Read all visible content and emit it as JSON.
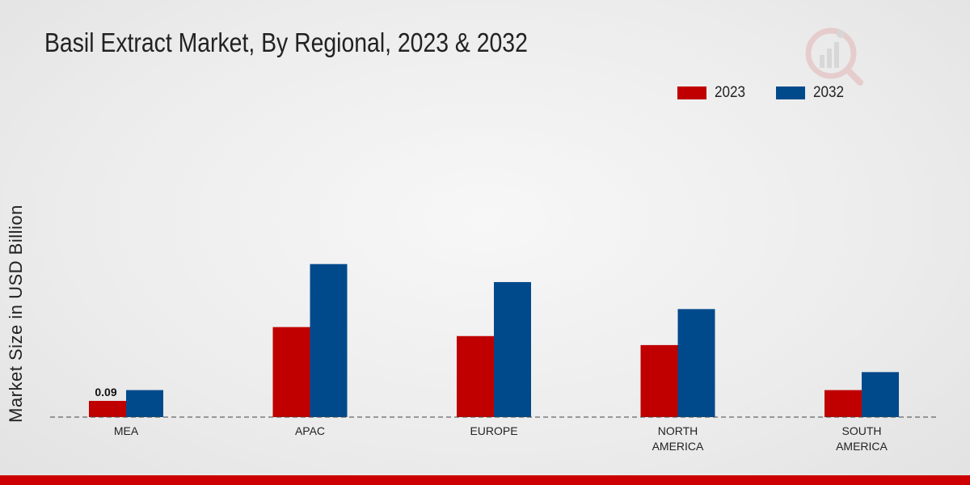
{
  "chart_data": {
    "type": "bar",
    "title": "Basil Extract Market, By Regional, 2023 & 2032",
    "ylabel": "Market Size in USD Billion",
    "xlabel": "",
    "categories": [
      "MEA",
      "APAC",
      "EUROPE",
      "NORTH AMERICA",
      "SOUTH AMERICA"
    ],
    "category_lines": [
      [
        "MEA"
      ],
      [
        "APAC"
      ],
      [
        "EUROPE"
      ],
      [
        "NORTH",
        "AMERICA"
      ],
      [
        "SOUTH",
        "AMERICA"
      ]
    ],
    "series": [
      {
        "name": "2023",
        "color": "#c00000",
        "values": [
          0.09,
          0.5,
          0.45,
          0.4,
          0.15
        ]
      },
      {
        "name": "2032",
        "color": "#004a8c",
        "values": [
          0.15,
          0.85,
          0.75,
          0.6,
          0.25
        ]
      }
    ],
    "data_labels": [
      {
        "series": 0,
        "index": 0,
        "text": "0.09"
      }
    ],
    "ylim": [
      0,
      1.1
    ],
    "grid": false,
    "legend_position": "top-right"
  }
}
